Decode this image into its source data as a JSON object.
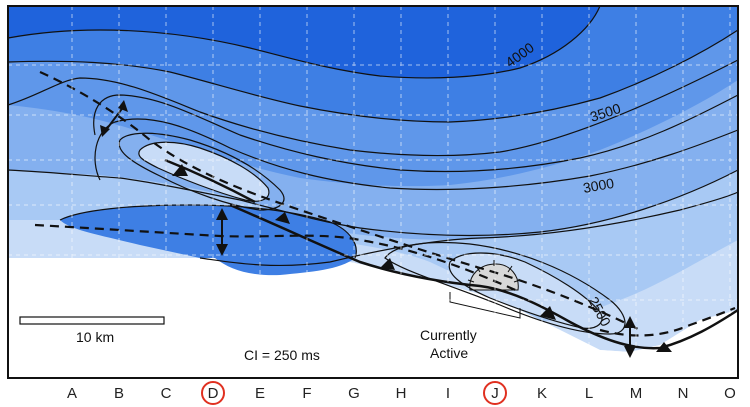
{
  "grid": {
    "columns": [
      "A",
      "B",
      "C",
      "D",
      "E",
      "F",
      "G",
      "H",
      "I",
      "J",
      "K",
      "L",
      "M",
      "N",
      "O"
    ],
    "highlighted": [
      "D",
      "J"
    ],
    "highlight_color": "#e03020"
  },
  "contours": {
    "labels": [
      "4000",
      "3500",
      "3000",
      "2500"
    ]
  },
  "scale_bar": {
    "label": "10 km"
  },
  "contour_interval": "CI = 250 ms",
  "annotation": {
    "line1": "Currently",
    "line2": "Active"
  },
  "colors": {
    "deep": "#1f63dc",
    "mid_dark": "#3e7fe4",
    "mid": "#5f97ea",
    "mid_light": "#84b0ef",
    "light": "#a8c9f4",
    "lightest": "#c8dcf7",
    "crest": "#d8d8d8",
    "frame": "#111111"
  },
  "icons": [
    "anticline-axis-arrow-icon",
    "fault-tooth-icon",
    "crest-dome-icon"
  ]
}
